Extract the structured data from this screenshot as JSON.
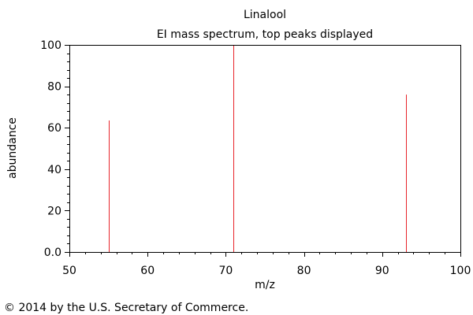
{
  "chart_data": {
    "type": "bar",
    "title": "Linalool",
    "subtitle": "EI mass spectrum, top peaks displayed",
    "xlabel": "m/z",
    "ylabel": "abundance",
    "xlim": [
      50,
      100
    ],
    "ylim": [
      0,
      100
    ],
    "x_ticks": [
      50,
      60,
      70,
      80,
      90,
      100
    ],
    "x_tick_labels": [
      "50",
      "60",
      "70",
      "80",
      "90",
      "100"
    ],
    "y_ticks": [
      0,
      20,
      40,
      60,
      80,
      100
    ],
    "y_tick_labels": [
      "0.0",
      "20",
      "40",
      "60",
      "80",
      "100"
    ],
    "grid": false,
    "peak_color": "#e8242a",
    "axis_color": "#000000",
    "peaks": [
      {
        "mz": 55,
        "abundance": 63.5
      },
      {
        "mz": 71,
        "abundance": 100
      },
      {
        "mz": 93,
        "abundance": 76
      }
    ]
  },
  "footer": {
    "copyright": "© 2014 by the U.S. Secretary of Commerce."
  }
}
